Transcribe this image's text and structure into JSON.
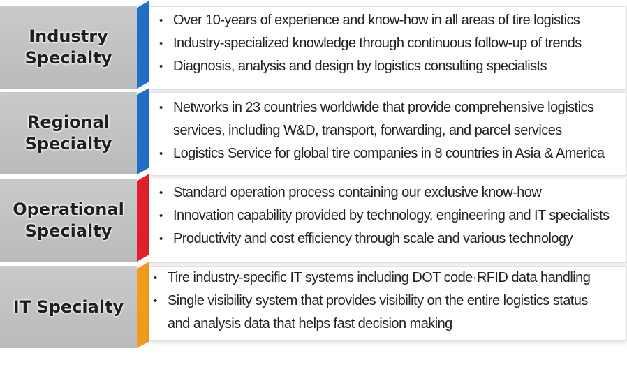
{
  "colors": {
    "blue": "#1f6fc7",
    "red": "#e0202a",
    "orange": "#f29a1c",
    "label_bg": "#c1c2c4"
  },
  "rows": [
    {
      "label": "Industry\nSpecialty",
      "accent": "blue",
      "bullets": [
        "Over 10-years of experience and know-how in all areas of tire logistics",
        "Industry-specialized knowledge through continuous follow-up of trends",
        "Diagnosis, analysis and design by logistics consulting specialists"
      ]
    },
    {
      "label": "Regional\nSpecialty",
      "accent": "blue",
      "bullets": [
        "Networks in 23 countries worldwide that provide comprehensive logistics",
        "services, including W&D, transport, forwarding, and parcel services",
        "Logistics Service for global tire companies in 8 countries in Asia & America"
      ]
    },
    {
      "label": "Operational\nSpecialty",
      "accent": "red",
      "bullets": [
        "Standard operation process containing our exclusive know-how",
        "Innovation capability provided by technology, engineering and IT specialists",
        "Productivity and cost efficiency through scale and various technology"
      ]
    },
    {
      "label": "IT Specialty",
      "accent": "orange",
      "bullets": [
        "Tire industry-specific IT systems including DOT code·RFID data handling",
        "Single visibility system that provides visibility on the entire logistics status",
        "and analysis data that helps fast decision making"
      ]
    }
  ]
}
